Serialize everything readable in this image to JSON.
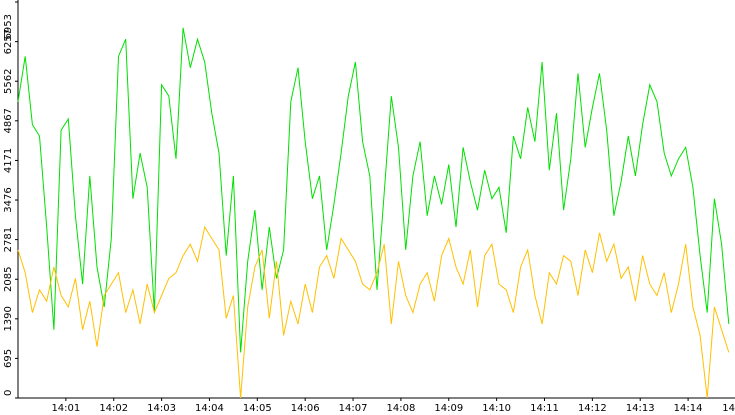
{
  "chart_data": {
    "type": "line",
    "x": [
      0,
      0.15,
      0.3,
      0.45,
      0.6,
      0.75,
      0.9,
      1.05,
      1.2,
      1.35,
      1.5,
      1.65,
      1.8,
      1.95,
      2.1,
      2.25,
      2.4,
      2.55,
      2.7,
      2.85,
      3,
      3.15,
      3.3,
      3.45,
      3.6,
      3.75,
      3.9,
      4.05,
      4.2,
      4.35,
      4.5,
      4.65,
      4.8,
      4.95,
      5.1,
      5.25,
      5.4,
      5.55,
      5.7,
      5.85,
      6,
      6.15,
      6.3,
      6.45,
      6.6,
      6.75,
      6.9,
      7.05,
      7.2,
      7.35,
      7.5,
      7.65,
      7.8,
      7.95,
      8.1,
      8.25,
      8.4,
      8.55,
      8.7,
      8.85,
      9,
      9.15,
      9.3,
      9.45,
      9.6,
      9.75,
      9.9,
      10.05,
      10.2,
      10.35,
      10.5,
      10.65,
      10.8,
      10.95,
      11.1,
      11.25,
      11.4,
      11.55,
      11.7,
      11.85,
      12,
      12.15,
      12.3,
      12.45,
      12.6,
      12.75,
      12.9,
      13.05,
      13.2,
      13.35,
      13.5,
      13.65,
      13.8,
      13.95,
      14.1,
      14.25,
      14.4,
      14.55,
      14.7,
      14.85
    ],
    "series": [
      {
        "color": "#00e000",
        "values": [
          5200,
          6000,
          4800,
          4600,
          3000,
          1200,
          4700,
          4900,
          3200,
          2000,
          3900,
          2300,
          1600,
          2800,
          6000,
          6300,
          3500,
          4300,
          3700,
          1500,
          5500,
          5300,
          4200,
          6500,
          5800,
          6300,
          5900,
          5000,
          4300,
          2500,
          3900,
          800,
          2400,
          3300,
          1900,
          3000,
          2100,
          2600,
          5200,
          5800,
          4500,
          3500,
          3900,
          2600,
          3400,
          4300,
          5300,
          5900,
          4500,
          3900,
          1900,
          3600,
          5300,
          4400,
          2600,
          3900,
          4500,
          3200,
          3900,
          3400,
          4100,
          3000,
          4400,
          3800,
          3300,
          4000,
          3500,
          3700,
          2900,
          4600,
          4200,
          5100,
          4500,
          5900,
          4000,
          5000,
          3300,
          4200,
          5700,
          4400,
          5100,
          5700,
          4700,
          3200,
          3800,
          4600,
          3900,
          4800,
          5500,
          5200,
          4300,
          3900,
          4200,
          4400,
          3700,
          2500,
          1500,
          3500,
          2700,
          1300
        ]
      },
      {
        "color": "#ffc000",
        "values": [
          2600,
          2200,
          1500,
          1900,
          1700,
          2300,
          1800,
          1600,
          2100,
          1200,
          1700,
          900,
          1800,
          2000,
          2200,
          1500,
          1900,
          1300,
          2000,
          1500,
          1800,
          2100,
          2200,
          2500,
          2700,
          2400,
          3000,
          2800,
          2600,
          1400,
          1800,
          0,
          1600,
          2300,
          2600,
          1400,
          2400,
          1100,
          1700,
          1300,
          2000,
          1500,
          2300,
          2500,
          2100,
          2800,
          2600,
          2400,
          2000,
          1900,
          2200,
          2700,
          1300,
          2400,
          1800,
          1500,
          2000,
          2200,
          1700,
          2500,
          2800,
          2300,
          2000,
          2600,
          1600,
          2500,
          2700,
          2000,
          1900,
          1500,
          2300,
          2600,
          1800,
          1300,
          2200,
          2000,
          2500,
          2400,
          1800,
          2600,
          2200,
          2900,
          2400,
          2700,
          2100,
          2300,
          1700,
          2500,
          2000,
          1800,
          2200,
          1500,
          2000,
          2700,
          1600,
          1100,
          0,
          1600,
          1200,
          800
        ]
      }
    ],
    "xlim": [
      0,
      14.98
    ],
    "xticks": [
      {
        "value": 1,
        "label": "14:01"
      },
      {
        "value": 2,
        "label": "14:02"
      },
      {
        "value": 3,
        "label": "14:03"
      },
      {
        "value": 4,
        "label": "14:04"
      },
      {
        "value": 5,
        "label": "14:05"
      },
      {
        "value": 6,
        "label": "14:06"
      },
      {
        "value": 7,
        "label": "14:07"
      },
      {
        "value": 8,
        "label": "14:08"
      },
      {
        "value": 9,
        "label": "14:09"
      },
      {
        "value": 10,
        "label": "14:10"
      },
      {
        "value": 11,
        "label": "14:11"
      },
      {
        "value": 12,
        "label": "14:12"
      },
      {
        "value": 13,
        "label": "14:13"
      },
      {
        "value": 14,
        "label": "14:14"
      },
      {
        "value": 15,
        "label": "14"
      }
    ],
    "ylim": [
      0,
      6953
    ],
    "yticks": [
      0,
      695,
      1390,
      2085,
      2781,
      3476,
      4171,
      4867,
      5562,
      6257,
      6953
    ]
  }
}
